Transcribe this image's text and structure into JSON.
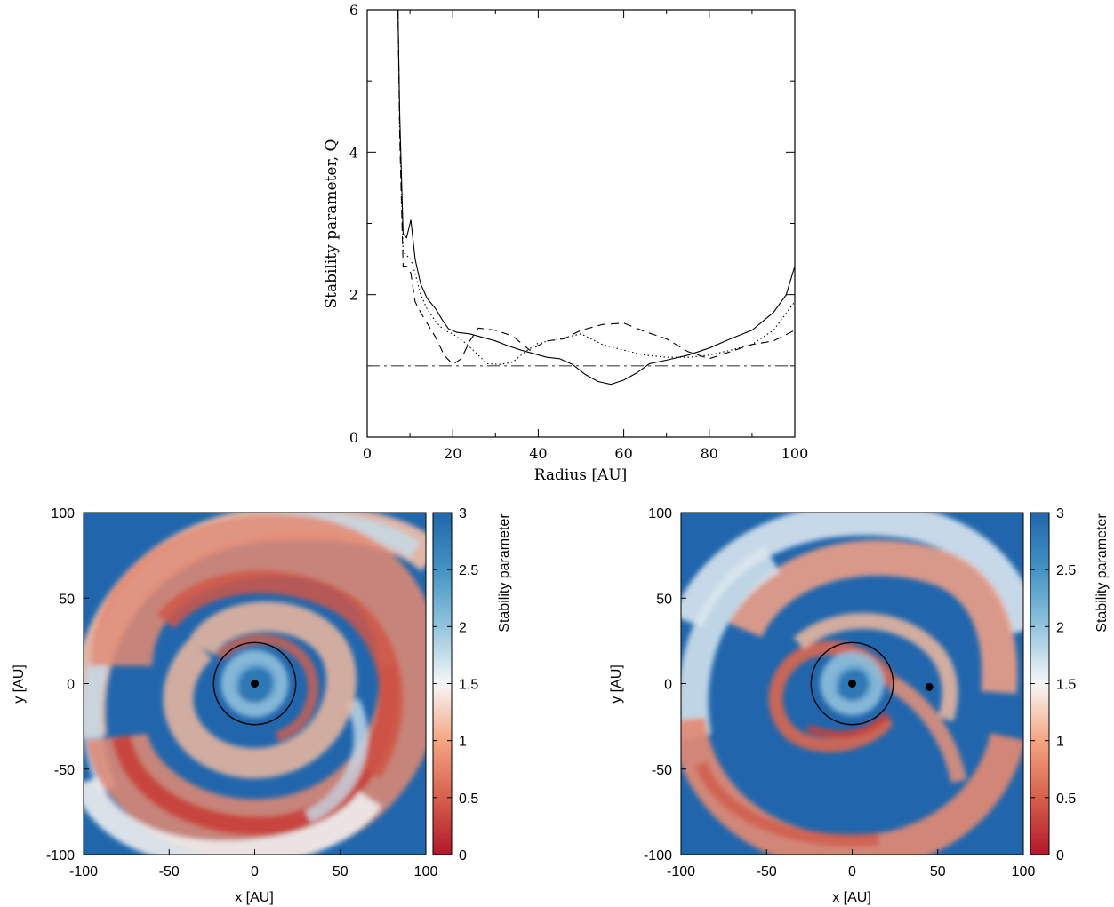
{
  "chart_data": [
    {
      "type": "line",
      "xlabel": "Radius [AU]",
      "ylabel": "Stability parameter, Q",
      "xlim": [
        0,
        100
      ],
      "ylim": [
        0,
        6
      ],
      "x_ticks": [
        "0",
        "20",
        "40",
        "60",
        "80",
        "100"
      ],
      "y_ticks": [
        "0",
        "2",
        "4",
        "6"
      ],
      "grid": false,
      "legend": "none",
      "series": [
        {
          "style": "solid",
          "x": [
            7.2,
            7.6,
            8.4,
            9.2,
            10.2,
            11.2,
            12.5,
            14,
            16,
            17.5,
            19,
            21,
            24,
            27,
            30,
            33,
            36,
            39,
            42,
            45,
            48,
            51,
            54,
            57,
            60,
            63,
            66,
            70,
            75,
            80,
            85,
            90,
            95,
            98,
            100
          ],
          "y": [
            6.0,
            4.5,
            2.85,
            2.8,
            3.05,
            2.5,
            2.15,
            1.95,
            1.8,
            1.65,
            1.52,
            1.47,
            1.45,
            1.4,
            1.35,
            1.28,
            1.22,
            1.17,
            1.12,
            1.1,
            1.02,
            0.88,
            0.78,
            0.74,
            0.8,
            0.9,
            1.03,
            1.08,
            1.15,
            1.25,
            1.38,
            1.5,
            1.75,
            2.0,
            2.4
          ]
        },
        {
          "style": "dashed",
          "x": [
            7.2,
            7.6,
            8.4,
            9.2,
            10.2,
            11.2,
            12.5,
            14,
            16,
            18,
            20,
            22,
            24,
            26,
            30,
            34,
            38,
            42,
            46,
            50,
            55,
            60,
            65,
            70,
            75,
            80,
            85,
            90,
            95,
            100
          ],
          "y": [
            6.0,
            4.2,
            2.4,
            2.4,
            2.3,
            1.9,
            1.75,
            1.6,
            1.4,
            1.15,
            1.02,
            1.1,
            1.35,
            1.53,
            1.5,
            1.42,
            1.22,
            1.35,
            1.38,
            1.5,
            1.58,
            1.6,
            1.48,
            1.38,
            1.2,
            1.1,
            1.2,
            1.3,
            1.35,
            1.5
          ]
        },
        {
          "style": "dotted",
          "x": [
            7.2,
            7.6,
            8.4,
            9.2,
            10.2,
            11.2,
            12.5,
            14,
            16,
            18,
            20,
            23,
            26,
            28,
            31,
            34,
            37,
            40,
            45,
            50,
            55,
            60,
            65,
            70,
            75,
            80,
            85,
            90,
            95,
            100
          ],
          "y": [
            6.0,
            4.3,
            2.6,
            2.55,
            2.5,
            2.3,
            2.0,
            1.8,
            1.62,
            1.5,
            1.45,
            1.32,
            1.15,
            1.03,
            1.02,
            1.05,
            1.2,
            1.32,
            1.38,
            1.45,
            1.3,
            1.22,
            1.15,
            1.12,
            1.12,
            1.15,
            1.22,
            1.3,
            1.5,
            1.9
          ]
        },
        {
          "style": "dash-dot",
          "x": [
            0,
            100
          ],
          "y": [
            1.0,
            1.0
          ]
        }
      ]
    },
    {
      "type": "heatmap",
      "xlabel": "x [AU]",
      "ylabel": "y [AU]",
      "xlim": [
        -100,
        100
      ],
      "ylim": [
        -100,
        100
      ],
      "x_ticks": [
        "-100",
        "-50",
        "0",
        "50",
        "100"
      ],
      "y_ticks": [
        "-100",
        "-50",
        "0",
        "50",
        "100"
      ],
      "colorbar_label": "Stability parameter",
      "colorbar_range": [
        0,
        3
      ],
      "colorbar_ticks": [
        "0",
        "0.5",
        "1",
        "1.5",
        "2",
        "2.5",
        "3"
      ],
      "colormap": [
        "#b2182b",
        "#d6604d",
        "#f4a582",
        "#f7f7f7",
        "#92c5de",
        "#4393c3",
        "#2166ac"
      ],
      "circle": {
        "center": [
          0,
          0
        ],
        "radius": 24
      },
      "markers": [
        {
          "x": 0,
          "y": 0
        }
      ]
    },
    {
      "type": "heatmap",
      "xlabel": "x [AU]",
      "ylabel": "y [AU]",
      "xlim": [
        -100,
        100
      ],
      "ylim": [
        -100,
        100
      ],
      "x_ticks": [
        "-100",
        "-50",
        "0",
        "50",
        "100"
      ],
      "y_ticks": [
        "-100",
        "-50",
        "0",
        "50",
        "100"
      ],
      "colorbar_label": "Stability parameter",
      "colorbar_range": [
        0,
        3
      ],
      "colorbar_ticks": [
        "0",
        "0.5",
        "1",
        "1.5",
        "2",
        "2.5",
        "3"
      ],
      "colormap": [
        "#b2182b",
        "#d6604d",
        "#f4a582",
        "#f7f7f7",
        "#92c5de",
        "#4393c3",
        "#2166ac"
      ],
      "circle": {
        "center": [
          0,
          0
        ],
        "radius": 24
      },
      "markers": [
        {
          "x": 0,
          "y": 0
        },
        {
          "x": 45,
          "y": -2
        }
      ]
    }
  ]
}
